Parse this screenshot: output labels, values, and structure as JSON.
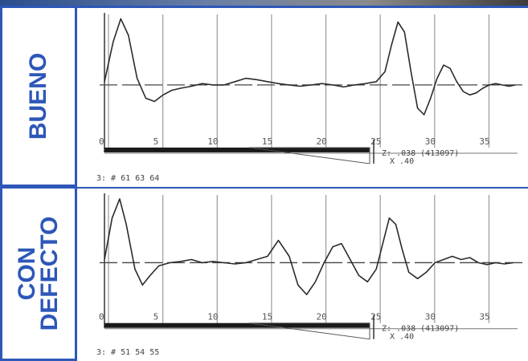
{
  "chart_data": [
    {
      "type": "line",
      "panel_label": "BUENO",
      "x_ticks": [
        "0",
        "5",
        "10",
        "15",
        "20",
        "25",
        "30",
        "35"
      ],
      "footer_left": "3: # 61 63 64",
      "footer_right": "Z: .038 (413097)",
      "footer_right_2": "X .40",
      "series": [
        {
          "x": [
            0,
            0.8,
            1.5,
            2.2,
            3.0,
            3.8,
            4.6,
            5.4,
            6.2,
            7.0,
            8.0,
            9.0,
            10.0,
            11.0,
            12.0,
            13.0,
            14.0,
            15.0,
            16.0,
            17.0,
            18.0,
            19.0,
            20.0,
            21.0,
            22.0,
            23.0,
            24.0,
            25.0,
            25.8,
            26.4,
            27.0,
            27.6,
            28.2,
            28.8,
            29.4,
            30.0,
            30.6,
            31.2,
            31.8,
            32.4,
            33.0,
            33.6,
            34.2,
            34.8,
            35.4,
            36.0,
            36.6,
            37.2,
            37.8
          ],
          "y": [
            0.05,
            0.65,
            1.0,
            0.75,
            0.1,
            -0.2,
            -0.25,
            -0.15,
            -0.08,
            -0.05,
            -0.02,
            0.02,
            0.0,
            0.0,
            0.05,
            0.1,
            0.08,
            0.05,
            0.02,
            0.0,
            -0.02,
            0.0,
            0.02,
            0.0,
            -0.03,
            0.0,
            0.02,
            0.05,
            0.2,
            0.6,
            0.95,
            0.8,
            0.2,
            -0.35,
            -0.45,
            -0.2,
            0.1,
            0.3,
            0.25,
            0.05,
            -0.1,
            -0.15,
            -0.12,
            -0.05,
            0.0,
            0.02,
            0.0,
            -0.02,
            0.0
          ]
        }
      ]
    },
    {
      "type": "line",
      "panel_label": "CON DEFECTO",
      "x_ticks": [
        "0",
        "5",
        "10",
        "15",
        "20",
        "25",
        "30",
        "35"
      ],
      "footer_left": "3: # 51 54 55",
      "footer_right": "Z: .038 (413097)",
      "footer_right_2": "X .40",
      "series": [
        {
          "x": [
            0,
            0.7,
            1.4,
            2.0,
            2.8,
            3.5,
            4.2,
            5.0,
            6.0,
            7.0,
            8.0,
            9.0,
            10.0,
            11.0,
            12.0,
            13.0,
            14.0,
            15.0,
            16.0,
            17.0,
            17.8,
            18.6,
            19.4,
            20.2,
            21.0,
            21.8,
            22.6,
            23.4,
            24.2,
            25.0,
            25.6,
            26.2,
            26.8,
            27.4,
            28.0,
            28.8,
            29.6,
            30.4,
            31.2,
            32.0,
            32.8,
            33.6,
            34.4,
            35.2,
            36.0,
            36.8,
            37.6
          ],
          "y": [
            0.05,
            0.7,
            1.0,
            0.6,
            -0.1,
            -0.35,
            -0.2,
            -0.05,
            0.0,
            0.02,
            0.05,
            0.0,
            0.02,
            0.0,
            -0.02,
            0.0,
            0.05,
            0.1,
            0.35,
            0.1,
            -0.35,
            -0.5,
            -0.3,
            0.0,
            0.25,
            0.3,
            0.05,
            -0.2,
            -0.3,
            -0.1,
            0.3,
            0.7,
            0.6,
            0.2,
            -0.15,
            -0.25,
            -0.15,
            0.0,
            0.05,
            0.1,
            0.05,
            0.08,
            0.0,
            -0.03,
            0.0,
            -0.02,
            0.0
          ]
        }
      ]
    }
  ]
}
